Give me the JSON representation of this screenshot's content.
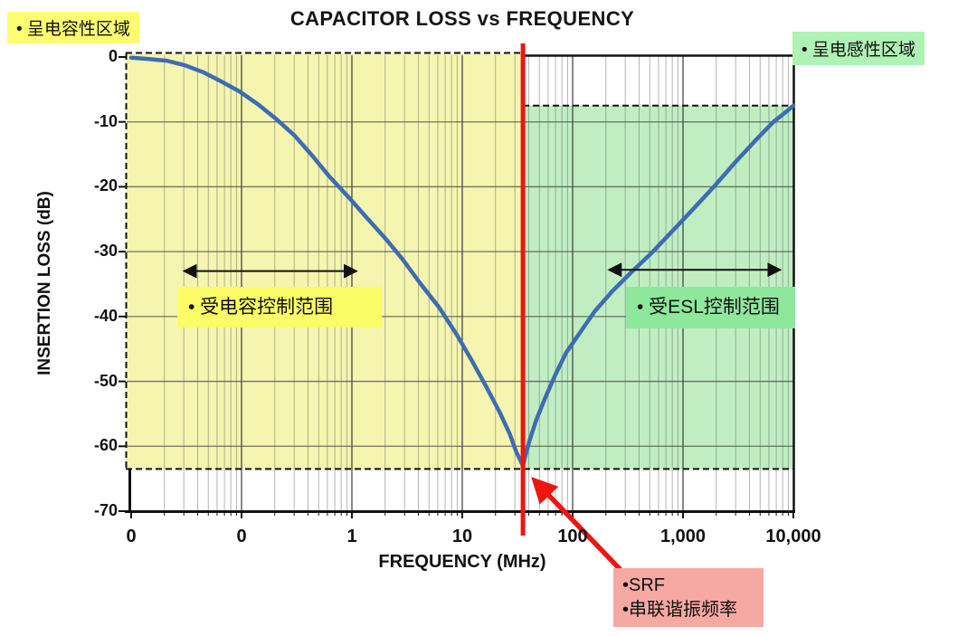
{
  "labels": {
    "capacitive_region": "• 呈电容性区域",
    "inductive_region": "• 呈电感性区域",
    "cap_range": "• 受电容控制范围",
    "esl_range": "• 受ESL控制范围",
    "srf_line1": "•SRF",
    "srf_line2": "•串联谐振频率"
  },
  "colors": {
    "yellow_region": "#f5f5b0",
    "green_region": "#c0eec2",
    "yellow_highlight": "#fdfd72",
    "green_highlight": "#8de89c",
    "green_highlight_light": "#aef2b4",
    "srf_box": "#f6a8a3",
    "curve_blue": "#3e6cb0",
    "red": "#ee1511",
    "grid_minor": "rgba(105,105,105,0.5)",
    "grid_major": "rgba(45,45,45,0.8)",
    "grid_h": "rgba(70,70,70,0.75)",
    "ink": "#111111"
  },
  "chart_data": {
    "type": "line",
    "title": "CAPACITOR LOSS vs FREQUENCY",
    "xlabel": "FREQUENCY (MHz)",
    "ylabel": "INSERTION LOSS (dB)",
    "x_scale": "log-decades",
    "n_decades": 6,
    "x_tick_labels": [
      "0",
      "0",
      "1",
      "10",
      "100",
      "1,000",
      "10,000"
    ],
    "y_ticks": [
      0,
      -10,
      -20,
      -30,
      -40,
      -50,
      -60,
      -70
    ],
    "ylim": [
      -70,
      0
    ],
    "grid": true,
    "srf_decade": 3.55,
    "srf_freq_mhz_approx": 35,
    "floor_db": -63.5,
    "inductive_top_db": -7.5,
    "regions": {
      "capacitive": {
        "from_decade": 0,
        "to_decade": 3.55,
        "top_db": 0,
        "bottom_db": -63.5
      },
      "inductive": {
        "from_decade": 3.55,
        "to_decade": 6,
        "top_db": -7.5,
        "bottom_db": -63.5
      }
    },
    "cap_arrow": {
      "from_decade": 0.49,
      "to_decade": 2.03,
      "db": -33
    },
    "esl_arrow": {
      "from_decade": 4.34,
      "to_decade": 5.87,
      "db": -32.8
    },
    "series": [
      {
        "name": "capacitor insertion loss",
        "points": [
          [
            0.0,
            -0.1
          ],
          [
            0.16,
            -0.3
          ],
          [
            0.33,
            -0.6
          ],
          [
            0.49,
            -1.3
          ],
          [
            0.66,
            -2.4
          ],
          [
            0.82,
            -3.8
          ],
          [
            0.98,
            -5.3
          ],
          [
            1.15,
            -7.3
          ],
          [
            1.31,
            -9.5
          ],
          [
            1.48,
            -12.1
          ],
          [
            1.64,
            -15.2
          ],
          [
            1.8,
            -18.5
          ],
          [
            1.97,
            -21.6
          ],
          [
            2.13,
            -24.7
          ],
          [
            2.3,
            -27.9
          ],
          [
            2.46,
            -31.2
          ],
          [
            2.62,
            -34.9
          ],
          [
            2.79,
            -38.6
          ],
          [
            2.95,
            -42.8
          ],
          [
            3.09,
            -46.9
          ],
          [
            3.22,
            -50.9
          ],
          [
            3.34,
            -54.8
          ],
          [
            3.43,
            -58.1
          ],
          [
            3.49,
            -60.9
          ],
          [
            3.53,
            -62.3
          ],
          [
            3.55,
            -63.0
          ],
          [
            3.57,
            -61.6
          ],
          [
            3.61,
            -59.1
          ],
          [
            3.67,
            -56.0
          ],
          [
            3.75,
            -52.6
          ],
          [
            3.84,
            -49.1
          ],
          [
            3.94,
            -45.6
          ],
          [
            4.07,
            -42.4
          ],
          [
            4.2,
            -39.2
          ],
          [
            4.36,
            -36.1
          ],
          [
            4.53,
            -33.2
          ],
          [
            4.71,
            -30.3
          ],
          [
            4.9,
            -26.9
          ],
          [
            5.1,
            -23.3
          ],
          [
            5.29,
            -19.8
          ],
          [
            5.47,
            -16.3
          ],
          [
            5.66,
            -12.8
          ],
          [
            5.82,
            -10.0
          ],
          [
            5.93,
            -8.5
          ],
          [
            6.0,
            -7.5
          ]
        ]
      }
    ]
  }
}
